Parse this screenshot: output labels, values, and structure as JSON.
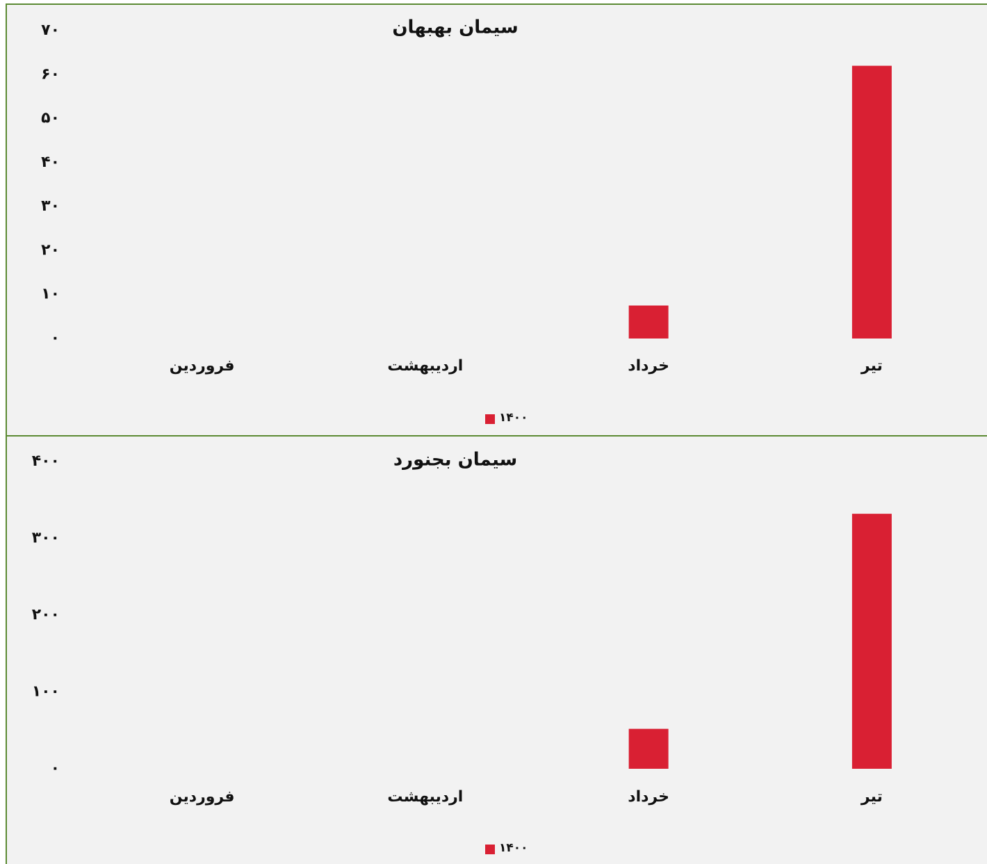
{
  "chart_data": [
    {
      "type": "bar",
      "title": "سیمان بهبهان",
      "categories": [
        "فروردین",
        "اردیبهشت",
        "خرداد",
        "تیر"
      ],
      "series": [
        {
          "name": "۱۴۰۰",
          "color": "#d92033",
          "values": [
            0,
            0,
            7.5,
            62
          ]
        }
      ],
      "ylim": [
        0,
        70
      ],
      "yticks": [
        {
          "value": 0,
          "label": "۰"
        },
        {
          "value": 10,
          "label": "۱۰"
        },
        {
          "value": 20,
          "label": "۲۰"
        },
        {
          "value": 30,
          "label": "۳۰"
        },
        {
          "value": 40,
          "label": "۴۰"
        },
        {
          "value": 50,
          "label": "۵۰"
        },
        {
          "value": 60,
          "label": "۶۰"
        },
        {
          "value": 70,
          "label": "۷۰"
        }
      ],
      "grid": false,
      "legend": "bottom"
    },
    {
      "type": "bar",
      "title": "سیمان بجنورد",
      "categories": [
        "فروردین",
        "اردیبهشت",
        "خرداد",
        "تیر"
      ],
      "series": [
        {
          "name": "۱۴۰۰",
          "color": "#d92033",
          "values": [
            0,
            0,
            52,
            332
          ]
        }
      ],
      "ylim": [
        0,
        400
      ],
      "yticks": [
        {
          "value": 0,
          "label": "۰"
        },
        {
          "value": 100,
          "label": "۱۰۰"
        },
        {
          "value": 200,
          "label": "۲۰۰"
        },
        {
          "value": 300,
          "label": "۳۰۰"
        },
        {
          "value": 400,
          "label": "۴۰۰"
        }
      ],
      "grid": false,
      "legend": "bottom"
    }
  ]
}
